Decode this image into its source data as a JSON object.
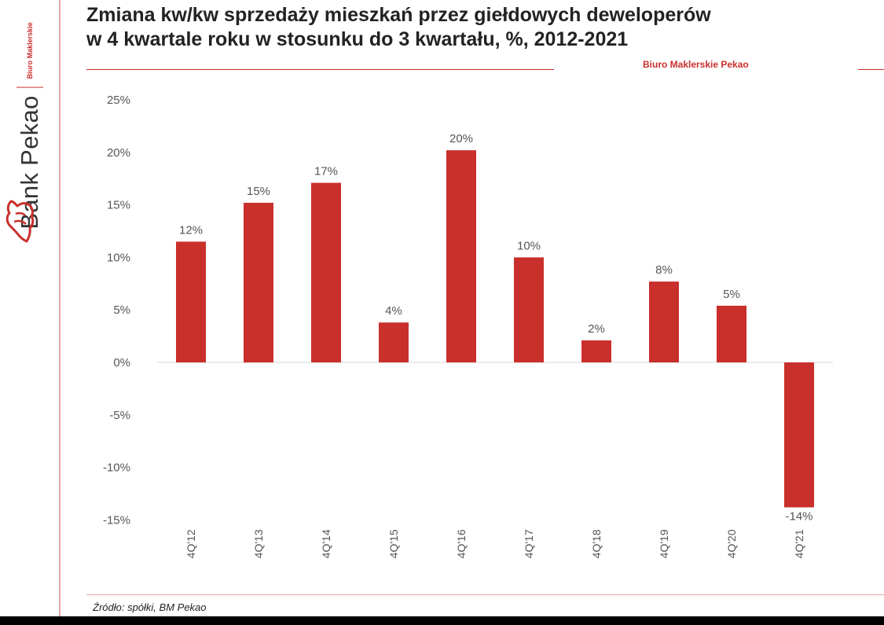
{
  "brand": {
    "name": "Bank Pekao",
    "sub": "Biuro Maklerskie",
    "report_brand": "Biuro Maklerskie Pekao",
    "logo_icon": "bison-logo-icon",
    "accent": "#c9302c"
  },
  "source": "Źródło: spółki, BM Pekao",
  "chart_data": {
    "type": "bar",
    "title_lines": [
      "Zmiana kw/kw sprzedaży mieszkań przez giełdowych deweloperów",
      "w 4 kwartale roku w stosunku do 3 kwartału, %, 2012-2021"
    ],
    "categories": [
      "4Q'12",
      "4Q'13",
      "4Q'14",
      "4Q'15",
      "4Q'16",
      "4Q'17",
      "4Q'18",
      "4Q'19",
      "4Q'20",
      "4Q'21"
    ],
    "values": [
      11.5,
      15.2,
      17.1,
      3.8,
      20.2,
      10.0,
      2.1,
      7.7,
      5.4,
      -13.8
    ],
    "data_labels": [
      "12%",
      "15%",
      "17%",
      "4%",
      "20%",
      "10%",
      "2%",
      "8%",
      "5%",
      "-14%"
    ],
    "ylim": [
      -15,
      25
    ],
    "yticks": [
      25,
      20,
      15,
      10,
      5,
      0,
      -5,
      -10,
      -15
    ],
    "ytick_labels": [
      "25%",
      "20%",
      "15%",
      "10%",
      "5%",
      "0%",
      "-5%",
      "-10%",
      "-15%"
    ],
    "bar_color": "#c9302c",
    "grid": false,
    "legend": "none"
  }
}
